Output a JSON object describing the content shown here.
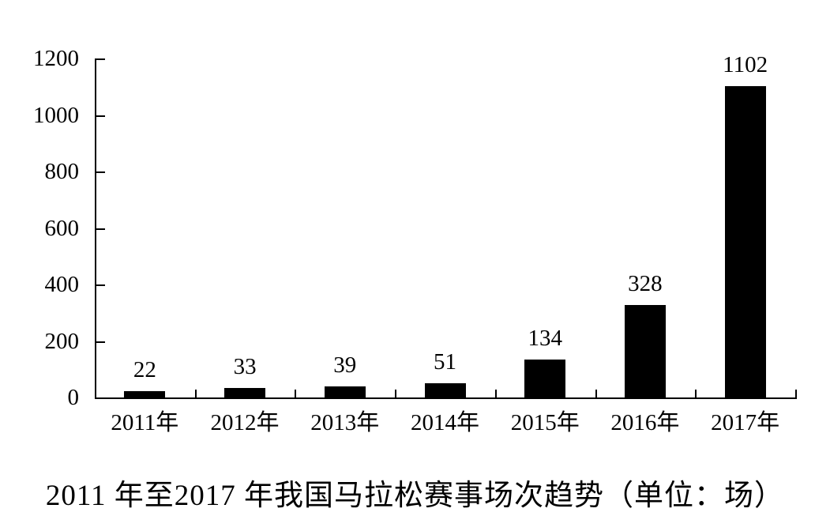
{
  "chart_data": {
    "type": "bar",
    "categories": [
      "2011年",
      "2012年",
      "2013年",
      "2014年",
      "2015年",
      "2016年",
      "2017年"
    ],
    "values": [
      22,
      33,
      39,
      51,
      134,
      328,
      1102
    ],
    "value_labels": [
      "22",
      "33",
      "39",
      "51",
      "134",
      "328",
      "1102"
    ],
    "title": "2011 年至2017 年我国马拉松赛事场次趋势（单位：场）",
    "xlabel": "",
    "ylabel": "",
    "ylim": [
      0,
      1200
    ],
    "yticks": [
      0,
      200,
      400,
      600,
      800,
      1000,
      1200
    ],
    "grid": false,
    "legend": "none",
    "bar_color": "#000000",
    "axis_color": "#000000",
    "background_color": "#ffffff",
    "tick_style": "inside"
  }
}
